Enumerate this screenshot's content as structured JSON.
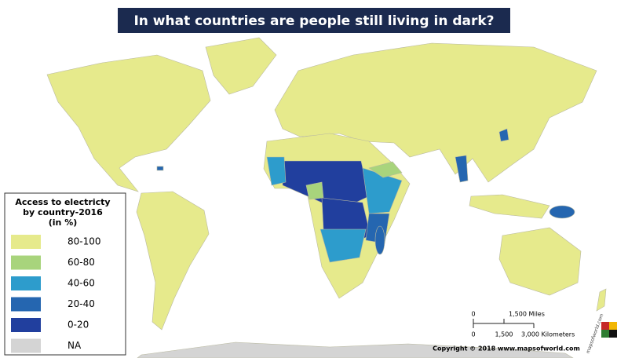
{
  "header": {
    "title": "In what countries are people still living in dark?"
  },
  "legend": {
    "title": [
      "Access to electricty",
      "by country-2016",
      "(in %)"
    ],
    "items": [
      {
        "label": "80-100",
        "color": "#e6ea8c"
      },
      {
        "label": "60-80",
        "color": "#a8d47c"
      },
      {
        "label": "40-60",
        "color": "#2d9ccc"
      },
      {
        "label": "20-40",
        "color": "#2566b0"
      },
      {
        "label": "0-20",
        "color": "#213f9e"
      },
      {
        "label": "NA",
        "color": "#d4d4d4"
      }
    ]
  },
  "scale": {
    "miles": [
      "0",
      "1,500 Miles"
    ],
    "kilometers": [
      "0",
      "1,500",
      "3,000 Kilometers"
    ]
  },
  "footer": {
    "copyright": "Copyright © 2018 www.mapsofworld.com"
  },
  "logo": {
    "text": "mapsofworld.com"
  }
}
